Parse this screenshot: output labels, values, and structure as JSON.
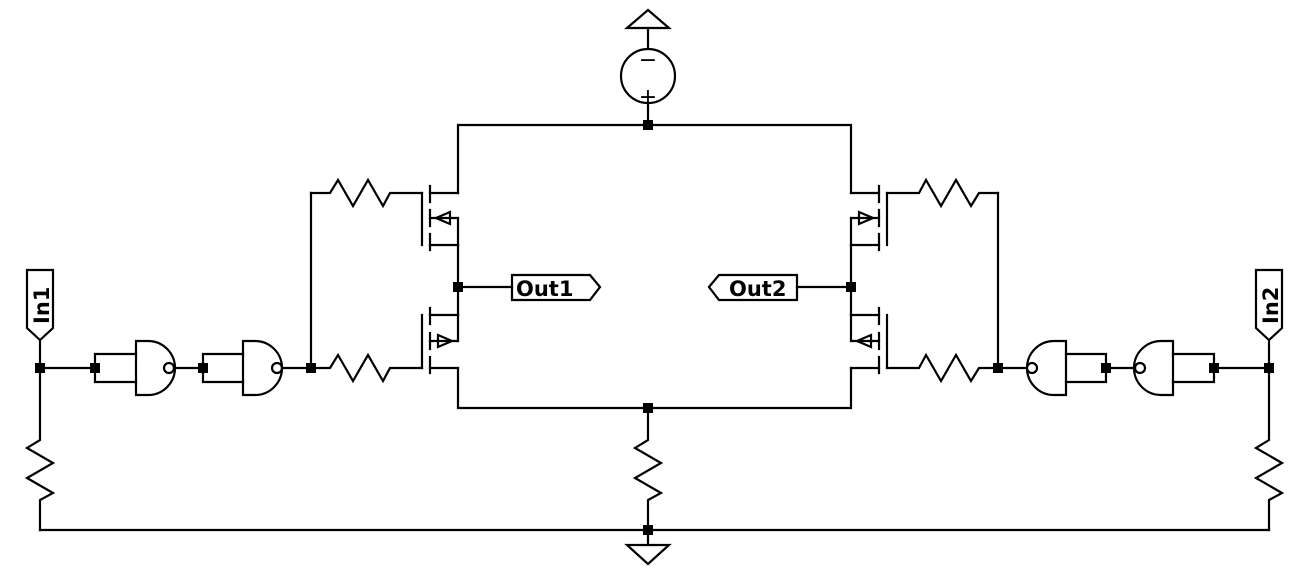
{
  "ports": {
    "in1": "In1",
    "in2": "In2",
    "out1": "Out1",
    "out2": "Out2"
  },
  "source": {
    "minus": "−",
    "plus": "+"
  }
}
